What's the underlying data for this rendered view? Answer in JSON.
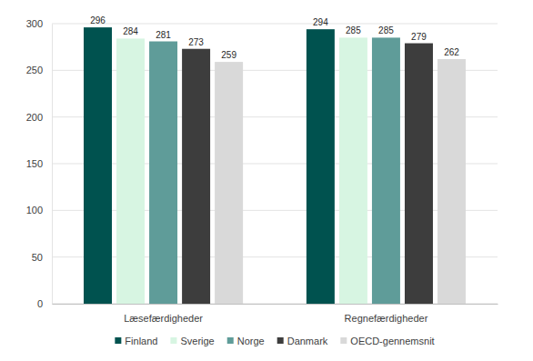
{
  "chart_data": {
    "type": "bar",
    "categories": [
      "Læsefærdigheder",
      "Regnefærdigheder"
    ],
    "series": [
      {
        "name": "Finland",
        "color": "#00524f",
        "values": [
          296,
          294
        ]
      },
      {
        "name": "Sverige",
        "color": "#d7f5e2",
        "values": [
          284,
          285
        ]
      },
      {
        "name": "Norge",
        "color": "#5f9c99",
        "values": [
          281,
          285
        ]
      },
      {
        "name": "Danmark",
        "color": "#3d3d3d",
        "values": [
          273,
          279
        ]
      },
      {
        "name": "OECD-gennemsnit",
        "color": "#d9d9d9",
        "values": [
          259,
          262
        ]
      }
    ],
    "ylim": [
      0,
      300
    ],
    "yticks": [
      0,
      50,
      100,
      150,
      200,
      250,
      300
    ],
    "grid": true,
    "legend": "bottom",
    "data_labels": true
  }
}
